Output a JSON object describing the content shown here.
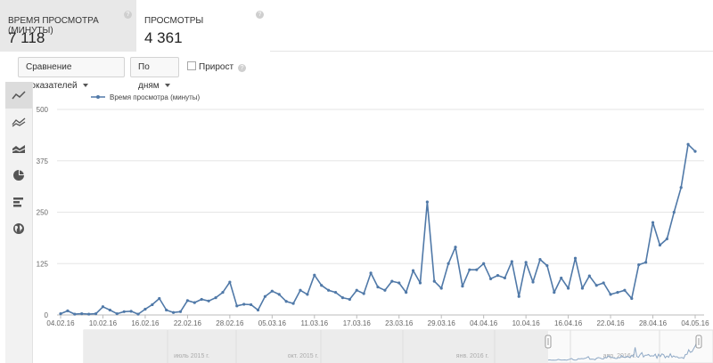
{
  "metrics": [
    {
      "label": "Время просмотра (минуты)",
      "value": "7 118",
      "help": "?"
    },
    {
      "label": "Просмотры",
      "value": "4 361",
      "help": "?"
    }
  ],
  "controls": {
    "compare_label": "Сравнение показателей",
    "days_label": "По дням",
    "growth_label": "Прирост",
    "growth_checked": false,
    "help": "?"
  },
  "sidebar": [
    {
      "icon": "line-chart-icon",
      "active": true
    },
    {
      "icon": "multi-line-chart-icon",
      "active": false
    },
    {
      "icon": "area-chart-icon",
      "active": false
    },
    {
      "icon": "pie-chart-icon",
      "active": false
    },
    {
      "icon": "bar-chart-icon",
      "active": false
    },
    {
      "icon": "globe-icon",
      "active": false
    }
  ],
  "navigator": {
    "labels": [
      "июль 2015 г.",
      "окт. 2015 г.",
      "янв. 2016 г.",
      "апр. 2016 г."
    ]
  },
  "chart_data": {
    "type": "line",
    "legend": "top-left",
    "series": [
      {
        "name": "Время просмотра (минуты)",
        "color": "#5079a8"
      }
    ],
    "ylim": [
      0,
      500
    ],
    "yticks": [
      0,
      125,
      250,
      375,
      500
    ],
    "x_ticks": [
      "04.02.16",
      "10.02.16",
      "16.02.16",
      "22.02.16",
      "28.02.16",
      "05.03.16",
      "11.03.16",
      "17.03.16",
      "23.03.16",
      "29.03.16",
      "04.04.16",
      "10.04.16",
      "16.04.16",
      "22.04.16",
      "28.04.16",
      "04.05.16"
    ],
    "x": [
      "04.02.16",
      "05.02.16",
      "06.02.16",
      "07.02.16",
      "08.02.16",
      "09.02.16",
      "10.02.16",
      "11.02.16",
      "12.02.16",
      "13.02.16",
      "14.02.16",
      "15.02.16",
      "16.02.16",
      "17.02.16",
      "18.02.16",
      "19.02.16",
      "20.02.16",
      "21.02.16",
      "22.02.16",
      "23.02.16",
      "24.02.16",
      "25.02.16",
      "26.02.16",
      "27.02.16",
      "28.02.16",
      "29.02.16",
      "01.03.16",
      "02.03.16",
      "03.03.16",
      "04.03.16",
      "05.03.16",
      "06.03.16",
      "07.03.16",
      "08.03.16",
      "09.03.16",
      "10.03.16",
      "11.03.16",
      "12.03.16",
      "13.03.16",
      "14.03.16",
      "15.03.16",
      "16.03.16",
      "17.03.16",
      "18.03.16",
      "19.03.16",
      "20.03.16",
      "21.03.16",
      "22.03.16",
      "23.03.16",
      "24.03.16",
      "25.03.16",
      "26.03.16",
      "27.03.16",
      "28.03.16",
      "29.03.16",
      "30.03.16",
      "31.03.16",
      "01.04.16",
      "02.04.16",
      "03.04.16",
      "04.04.16",
      "05.04.16",
      "06.04.16",
      "07.04.16",
      "08.04.16",
      "09.04.16",
      "10.04.16",
      "11.04.16",
      "12.04.16",
      "13.04.16",
      "14.04.16",
      "15.04.16",
      "16.04.16",
      "17.04.16",
      "18.04.16",
      "19.04.16",
      "20.04.16",
      "21.04.16",
      "22.04.16",
      "23.04.16",
      "24.04.16",
      "25.04.16",
      "26.04.16",
      "27.04.16",
      "28.04.16",
      "29.04.16",
      "30.04.16",
      "01.05.16",
      "02.05.16",
      "03.05.16",
      "04.05.16"
    ],
    "values": [
      3,
      10,
      2,
      3,
      2,
      3,
      20,
      12,
      3,
      8,
      9,
      2,
      14,
      25,
      40,
      12,
      6,
      8,
      35,
      30,
      38,
      34,
      42,
      55,
      80,
      22,
      26,
      25,
      12,
      45,
      58,
      50,
      33,
      28,
      60,
      50,
      97,
      72,
      60,
      55,
      42,
      38,
      60,
      52,
      102,
      68,
      60,
      82,
      78,
      55,
      108,
      78,
      275,
      82,
      65,
      125,
      165,
      70,
      110,
      110,
      125,
      88,
      96,
      90,
      130,
      45,
      128,
      80,
      135,
      120,
      55,
      90,
      65,
      138,
      65,
      95,
      72,
      78,
      50,
      55,
      60,
      40,
      122,
      128,
      225,
      170,
      185,
      250,
      310,
      415,
      398
    ]
  }
}
